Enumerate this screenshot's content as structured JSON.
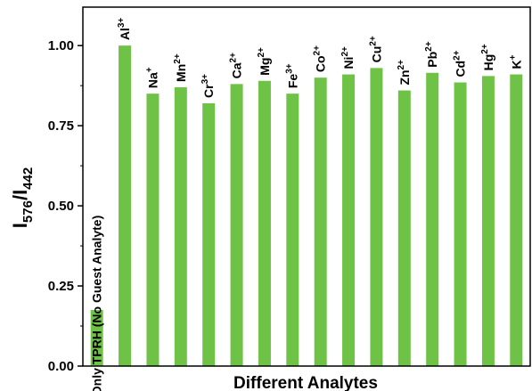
{
  "chart_data": {
    "type": "bar",
    "xlabel": "Different Analytes",
    "ylabel": {
      "base": "I",
      "sub1": "576",
      "slash": "/I",
      "sub2": "442"
    },
    "ylim": [
      0,
      1.12
    ],
    "yticks": [
      {
        "value": 0.0,
        "label": "0.00"
      },
      {
        "value": 0.25,
        "label": "0.25"
      },
      {
        "value": 0.5,
        "label": "0.50"
      },
      {
        "value": 0.75,
        "label": "0.75"
      },
      {
        "value": 1.0,
        "label": "1.00"
      }
    ],
    "bar_color": "#6ec346",
    "bars": [
      {
        "base": "Only TPRH (No Guest Analyte)",
        "sup": "",
        "value": 0.175
      },
      {
        "base": "Al",
        "sup": "3+",
        "value": 1.0
      },
      {
        "base": "Na",
        "sup": "+",
        "value": 0.85
      },
      {
        "base": "Mn",
        "sup": "2+",
        "value": 0.87
      },
      {
        "base": "Cr",
        "sup": "3+",
        "value": 0.82
      },
      {
        "base": "Ca",
        "sup": "2+",
        "value": 0.88
      },
      {
        "base": "Mg",
        "sup": "2+",
        "value": 0.89
      },
      {
        "base": "Fe",
        "sup": "3+",
        "value": 0.85
      },
      {
        "base": "Co",
        "sup": "2+",
        "value": 0.9
      },
      {
        "base": "Ni",
        "sup": "2+",
        "value": 0.91
      },
      {
        "base": "Cu",
        "sup": "2+",
        "value": 0.93
      },
      {
        "base": "Zn",
        "sup": "2+",
        "value": 0.86
      },
      {
        "base": "Pb",
        "sup": "2+",
        "value": 0.915
      },
      {
        "base": "Cd",
        "sup": "2+",
        "value": 0.885
      },
      {
        "base": "Hg",
        "sup": "2+",
        "value": 0.905
      },
      {
        "base": "K",
        "sup": "+",
        "value": 0.91
      }
    ]
  }
}
